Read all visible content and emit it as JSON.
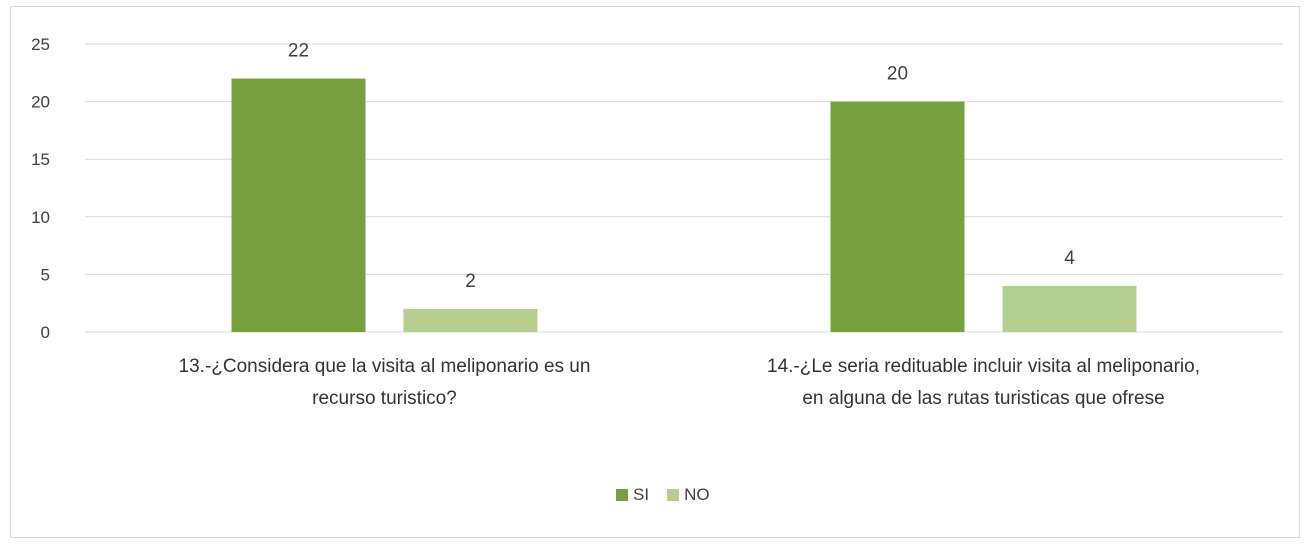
{
  "chart_data": {
    "type": "bar",
    "categories": [
      [
        "13.-¿Considera que la visita al meliponario es un",
        "recurso turistico?"
      ],
      [
        "14.-¿Le seria redituable incluir  visita al meliponario,",
        "en alguna de las rutas turisticas que ofrese"
      ]
    ],
    "series": [
      {
        "name": "SI",
        "values": [
          22,
          20
        ],
        "color": "#77a03f"
      },
      {
        "name": "NO",
        "values": [
          2,
          4
        ],
        "color": "#b4cf8f"
      }
    ],
    "ylim": [
      0,
      25
    ],
    "yticks": [
      0,
      5,
      10,
      15,
      20,
      25
    ],
    "grid": true,
    "legend_position": "bottom-center",
    "xlabel": "",
    "ylabel": "",
    "title": ""
  }
}
